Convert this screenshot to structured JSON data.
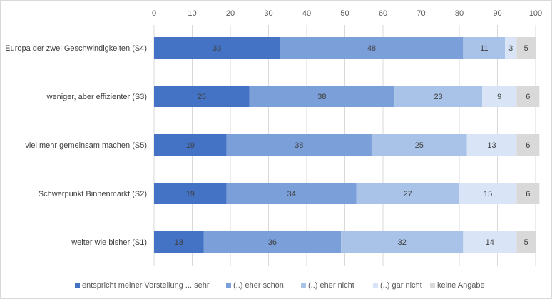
{
  "chart_data": {
    "type": "bar",
    "orientation": "horizontal",
    "stacked": true,
    "title": "",
    "xlabel": "",
    "ylabel": "",
    "xlim": [
      0,
      100
    ],
    "xticks": [
      "0",
      "10",
      "20",
      "30",
      "40",
      "50",
      "60",
      "70",
      "80",
      "90",
      "100"
    ],
    "xaxis_position": "top",
    "grid": "vertical",
    "legend_position": "bottom",
    "categories": [
      "Europa der zwei Geschwindigkeiten (S4)",
      "weniger, aber effizienter (S3)",
      "viel mehr gemeinsam machen (S5)",
      "Schwerpunkt Binnenmarkt (S2)",
      "weiter wie bisher (S1)"
    ],
    "series": [
      {
        "name": "entspricht meiner Vorstellung ... sehr",
        "color": "#4472c4",
        "values": [
          33,
          25,
          19,
          19,
          13
        ]
      },
      {
        "name": "(..) eher schon",
        "color": "#7b9fd8",
        "values": [
          48,
          38,
          38,
          34,
          36
        ]
      },
      {
        "name": "(..) eher nicht",
        "color": "#a9c3e8",
        "values": [
          11,
          23,
          25,
          27,
          32
        ]
      },
      {
        "name": "(..) gar nicht",
        "color": "#d9e5f7",
        "values": [
          3,
          9,
          13,
          15,
          14
        ]
      },
      {
        "name": "keine Angabe",
        "color": "#d9d9d9",
        "values": [
          5,
          6,
          6,
          6,
          5
        ]
      }
    ]
  }
}
